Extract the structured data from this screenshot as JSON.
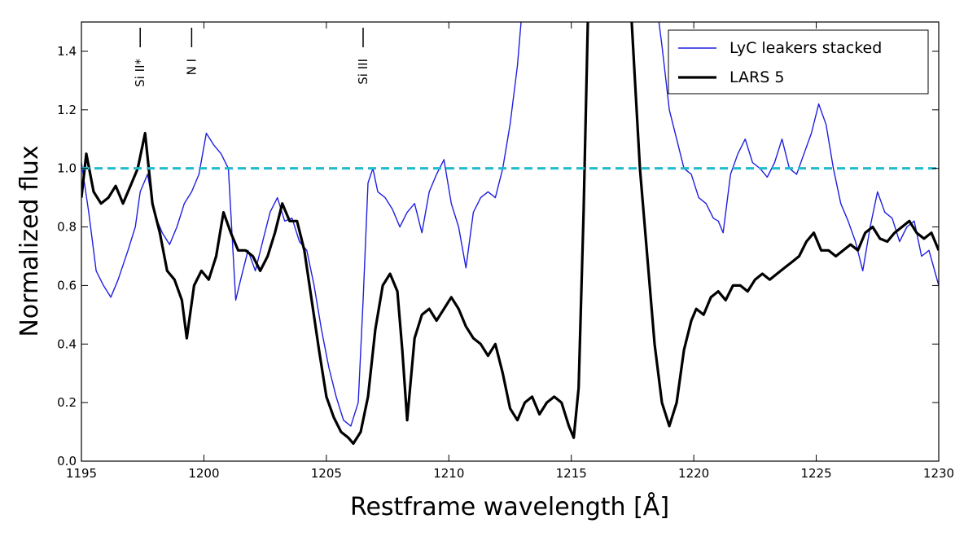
{
  "chart_data": {
    "type": "line",
    "title": "",
    "xlabel": "Restframe wavelength [Å]",
    "ylabel": "Normalized flux",
    "xlim": [
      1195,
      1230
    ],
    "ylim": [
      0.0,
      1.5
    ],
    "xticks": [
      1195,
      1200,
      1205,
      1210,
      1215,
      1220,
      1225,
      1230
    ],
    "yticks": [
      0.0,
      0.2,
      0.4,
      0.6,
      0.8,
      1.0,
      1.2,
      1.4
    ],
    "xtick_labels": [
      "1195",
      "1200",
      "1205",
      "1210",
      "1215",
      "1220",
      "1225",
      "1230"
    ],
    "ytick_labels": [
      "0.0",
      "0.2",
      "0.4",
      "0.6",
      "0.8",
      "1.0",
      "1.2",
      "1.4"
    ],
    "grid": false,
    "legend_position": "top-right",
    "reference_line": {
      "y": 1.0,
      "color": "#22bbcc",
      "style": "dashed"
    },
    "line_markers": [
      {
        "label": "Si II*",
        "x": 1197.4
      },
      {
        "label": "N I",
        "x": 1199.5
      },
      {
        "label": "Si III",
        "x": 1206.5
      }
    ],
    "series": [
      {
        "name": "LyC leakers stacked",
        "color": "#1f1fe0",
        "x": [
          1195.0,
          1195.3,
          1195.6,
          1195.9,
          1196.2,
          1196.5,
          1196.9,
          1197.2,
          1197.4,
          1197.7,
          1198.0,
          1198.3,
          1198.6,
          1198.9,
          1199.2,
          1199.5,
          1199.8,
          1200.1,
          1200.4,
          1200.7,
          1201.0,
          1201.3,
          1201.5,
          1201.8,
          1202.1,
          1202.4,
          1202.7,
          1203.0,
          1203.3,
          1203.6,
          1203.9,
          1204.2,
          1204.5,
          1204.8,
          1205.1,
          1205.4,
          1205.7,
          1206.0,
          1206.3,
          1206.5,
          1206.7,
          1206.9,
          1207.1,
          1207.4,
          1207.7,
          1208.0,
          1208.3,
          1208.6,
          1208.9,
          1209.2,
          1209.5,
          1209.8,
          1210.1,
          1210.4,
          1210.7,
          1211.0,
          1211.3,
          1211.6,
          1211.9,
          1212.2,
          1212.5,
          1212.8,
          1213.0
        ],
        "values": [
          1.02,
          0.85,
          0.65,
          0.6,
          0.56,
          0.62,
          0.72,
          0.8,
          0.92,
          0.98,
          0.84,
          0.78,
          0.74,
          0.8,
          0.88,
          0.92,
          0.98,
          1.12,
          1.08,
          1.05,
          1.0,
          0.55,
          0.62,
          0.72,
          0.65,
          0.75,
          0.85,
          0.9,
          0.82,
          0.83,
          0.75,
          0.72,
          0.6,
          0.45,
          0.32,
          0.22,
          0.14,
          0.12,
          0.2,
          0.55,
          0.95,
          1.0,
          0.92,
          0.9,
          0.86,
          0.8,
          0.85,
          0.88,
          0.78,
          0.92,
          0.98,
          1.03,
          0.88,
          0.8,
          0.66,
          0.85,
          0.9,
          0.92,
          0.9,
          1.0,
          1.15,
          1.35,
          1.55
        ]
      },
      {
        "name": "LyC leakers stacked",
        "color": "#1f1fe0",
        "x": [
          1218.5,
          1218.7,
          1219.0,
          1219.3,
          1219.6,
          1219.9,
          1220.2,
          1220.5,
          1220.8,
          1221.0,
          1221.2,
          1221.5,
          1221.8,
          1222.1,
          1222.4,
          1222.7,
          1223.0,
          1223.3,
          1223.6,
          1223.9,
          1224.2,
          1224.5,
          1224.8,
          1225.1,
          1225.4,
          1225.7,
          1226.0,
          1226.3,
          1226.6,
          1226.9,
          1227.2,
          1227.5,
          1227.8,
          1228.1,
          1228.4,
          1228.7,
          1229.0,
          1229.3,
          1229.6,
          1230.0
        ],
        "values": [
          1.55,
          1.42,
          1.2,
          1.1,
          1.0,
          0.98,
          0.9,
          0.88,
          0.83,
          0.82,
          0.78,
          0.98,
          1.05,
          1.1,
          1.02,
          1.0,
          0.97,
          1.02,
          1.1,
          1.0,
          0.98,
          1.05,
          1.12,
          1.22,
          1.15,
          1.0,
          0.88,
          0.82,
          0.75,
          0.65,
          0.8,
          0.92,
          0.85,
          0.83,
          0.75,
          0.8,
          0.82,
          0.7,
          0.72,
          0.6
        ]
      },
      {
        "name": "LARS 5",
        "color": "#000000",
        "x": [
          1195.0,
          1195.2,
          1195.5,
          1195.8,
          1196.1,
          1196.4,
          1196.7,
          1197.0,
          1197.3,
          1197.6,
          1197.9,
          1198.2,
          1198.5,
          1198.8,
          1199.1,
          1199.3,
          1199.6,
          1199.9,
          1200.2,
          1200.5,
          1200.8,
          1201.1,
          1201.4,
          1201.7,
          1202.0,
          1202.3,
          1202.6,
          1202.9,
          1203.2,
          1203.5,
          1203.8,
          1204.1,
          1204.4,
          1204.7,
          1205.0,
          1205.3,
          1205.6,
          1205.9,
          1206.1,
          1206.4,
          1206.7,
          1207.0,
          1207.3,
          1207.6,
          1207.9,
          1208.1,
          1208.3,
          1208.6,
          1208.9,
          1209.2,
          1209.5,
          1209.8,
          1210.1,
          1210.4,
          1210.7,
          1211.0,
          1211.3,
          1211.6,
          1211.9,
          1212.2,
          1212.5,
          1212.8,
          1213.1,
          1213.4,
          1213.7,
          1214.0,
          1214.3,
          1214.6,
          1214.9,
          1215.1,
          1215.3,
          1215.5,
          1215.7
        ],
        "values": [
          0.9,
          1.05,
          0.92,
          0.88,
          0.9,
          0.94,
          0.88,
          0.94,
          1.0,
          1.12,
          0.88,
          0.78,
          0.65,
          0.62,
          0.55,
          0.42,
          0.6,
          0.65,
          0.62,
          0.7,
          0.85,
          0.78,
          0.72,
          0.72,
          0.7,
          0.65,
          0.7,
          0.78,
          0.88,
          0.82,
          0.82,
          0.72,
          0.55,
          0.38,
          0.22,
          0.15,
          0.1,
          0.08,
          0.06,
          0.1,
          0.22,
          0.45,
          0.6,
          0.64,
          0.58,
          0.38,
          0.14,
          0.42,
          0.5,
          0.52,
          0.48,
          0.52,
          0.56,
          0.52,
          0.46,
          0.42,
          0.4,
          0.36,
          0.4,
          0.3,
          0.18,
          0.14,
          0.2,
          0.22,
          0.16,
          0.2,
          0.22,
          0.2,
          0.12,
          0.08,
          0.25,
          0.85,
          1.6
        ]
      },
      {
        "name": "LARS 5",
        "color": "#000000",
        "x": [
          1217.4,
          1217.6,
          1217.8,
          1218.1,
          1218.4,
          1218.7,
          1219.0,
          1219.3,
          1219.6,
          1219.9,
          1220.1,
          1220.4,
          1220.7,
          1221.0,
          1221.3,
          1221.6,
          1221.9,
          1222.2,
          1222.5,
          1222.8,
          1223.1,
          1223.4,
          1223.7,
          1224.0,
          1224.3,
          1224.6,
          1224.9,
          1225.2,
          1225.5,
          1225.8,
          1226.1,
          1226.4,
          1226.7,
          1227.0,
          1227.3,
          1227.6,
          1227.9,
          1228.2,
          1228.5,
          1228.8,
          1229.1,
          1229.4,
          1229.7,
          1230.0
        ],
        "values": [
          1.6,
          1.3,
          1.0,
          0.7,
          0.4,
          0.2,
          0.12,
          0.2,
          0.38,
          0.48,
          0.52,
          0.5,
          0.56,
          0.58,
          0.55,
          0.6,
          0.6,
          0.58,
          0.62,
          0.64,
          0.62,
          0.64,
          0.66,
          0.68,
          0.7,
          0.75,
          0.78,
          0.72,
          0.72,
          0.7,
          0.72,
          0.74,
          0.72,
          0.78,
          0.8,
          0.76,
          0.75,
          0.78,
          0.8,
          0.82,
          0.78,
          0.76,
          0.78,
          0.72
        ]
      }
    ],
    "legend": [
      {
        "label": "LyC leakers stacked",
        "color": "#1f1fe0",
        "width": 1.4
      },
      {
        "label": "LARS 5",
        "color": "#000000",
        "width": 3.2
      }
    ]
  }
}
